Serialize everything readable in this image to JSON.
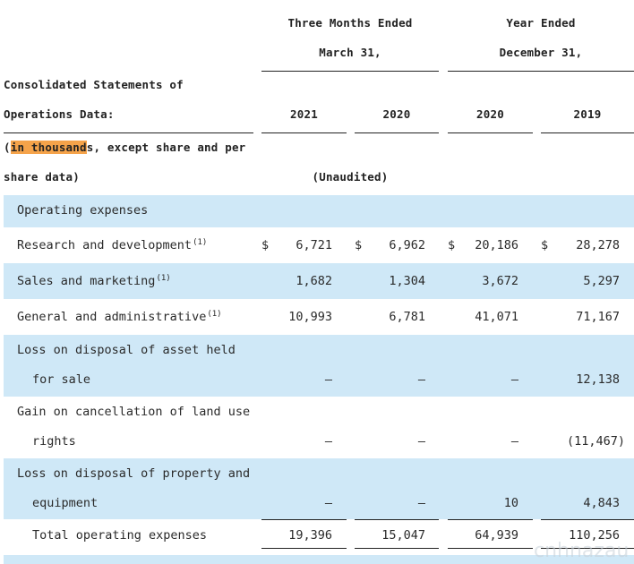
{
  "header": {
    "three_months_line1": "Three Months Ended",
    "three_months_line2": "March 31,",
    "year_line1": "Year Ended",
    "year_line2": "December 31,",
    "left_line1": "Consolidated Statements of",
    "left_line2": "Operations Data:",
    "units_prefix": "(",
    "units_highlight": "in thousand",
    "units_rest": "s, except share and per",
    "units_line2": "share data)",
    "unaudited": "(Unaudited)",
    "years": [
      "2021",
      "2020",
      "2020",
      "2019"
    ]
  },
  "rows": {
    "section": {
      "label": "Operating expenses"
    },
    "rnd": {
      "label": "Research and development",
      "note": "(1)",
      "values": [
        "6,721",
        "6,962",
        "20,186",
        "28,278"
      ],
      "dollar": "$"
    },
    "sales": {
      "label": "Sales and marketing",
      "note": "(1)",
      "values": [
        "1,682",
        "1,304",
        "3,672",
        "5,297"
      ]
    },
    "ga": {
      "label": "General and administrative",
      "note": "(1)",
      "values": [
        "10,993",
        "6,781",
        "41,071",
        "71,167"
      ]
    },
    "asset": {
      "line1": "Loss on disposal of asset held",
      "line2": "for sale",
      "values": [
        "—",
        "—",
        "—",
        "12,138"
      ]
    },
    "land": {
      "line1": "Gain on cancellation of land use",
      "line2": "rights",
      "values": [
        "—",
        "—",
        "—",
        "(11,467)"
      ]
    },
    "property": {
      "line1": "Loss on disposal of property and",
      "line2": "equipment",
      "values": [
        "—",
        "—",
        "10",
        "4,843"
      ]
    },
    "total": {
      "label": "Total operating expenses",
      "values": [
        "19,396",
        "15,047",
        "64,939",
        "110,256"
      ]
    }
  },
  "watermark": "cnhnazau",
  "colors": {
    "band": "#cfe8f7",
    "highlight": "#f5a34a"
  }
}
